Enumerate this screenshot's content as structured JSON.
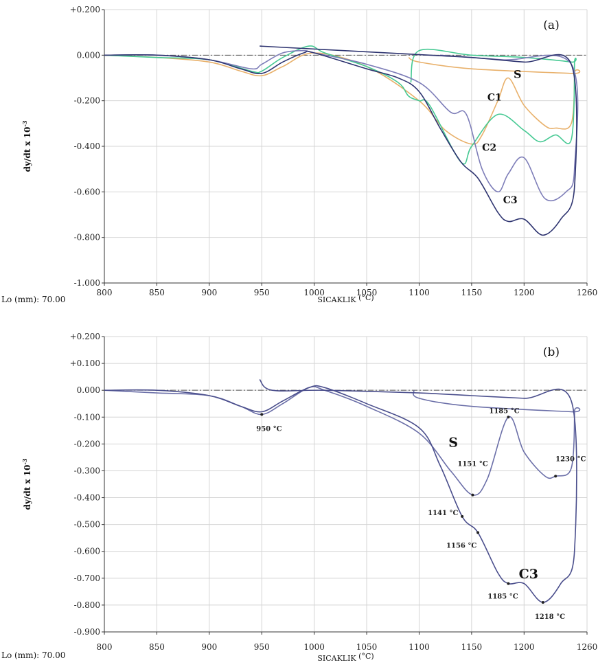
{
  "chart_data": [
    {
      "type": "line",
      "panel_label": "(a)",
      "xlabel": "SICAKLIK",
      "xunit": "(°C)",
      "ylabel": "dy/dt x 10",
      "ylabel_exp": "-3",
      "lo_label": "Lo (mm): 70.00",
      "xlim": [
        800,
        1260
      ],
      "ylim": [
        -1.0,
        0.2
      ],
      "x_ticks": [
        800,
        850,
        900,
        950,
        1000,
        1050,
        1100,
        1150,
        1200,
        1260
      ],
      "y_ticks": [
        0.2,
        0.0,
        -0.2,
        -0.4,
        -0.6,
        -0.8,
        -1.0
      ],
      "y_tick_labels": [
        "+0.200",
        "0.000",
        "-0.200",
        "-0.400",
        "-0.600",
        "-0.800",
        "-1.000"
      ],
      "grid": true,
      "series": [
        {
          "name": "S",
          "color": "#e8b06a",
          "x": [
            800,
            850,
            900,
            930,
            950,
            970,
            1000,
            1050,
            1100,
            1125,
            1150,
            1160,
            1175,
            1185,
            1200,
            1220,
            1230,
            1245,
            1248,
            1245,
            1150,
            1100,
            1090
          ],
          "y": [
            0.0,
            -0.01,
            -0.03,
            -0.07,
            -0.09,
            -0.05,
            0.01,
            -0.05,
            -0.2,
            -0.33,
            -0.39,
            -0.35,
            -0.2,
            -0.1,
            -0.22,
            -0.31,
            -0.32,
            -0.3,
            -0.08,
            -0.08,
            -0.06,
            -0.03,
            -0.01
          ]
        },
        {
          "name": "C1",
          "color": "#46c993",
          "x": [
            800,
            850,
            900,
            940,
            950,
            970,
            995,
            1010,
            1050,
            1080,
            1090,
            1100,
            1110,
            1140,
            1150,
            1175,
            1200,
            1215,
            1230,
            1245,
            1248,
            1245,
            1200,
            1150,
            1100,
            1092
          ],
          "y": [
            0.0,
            -0.01,
            -0.02,
            -0.07,
            -0.07,
            -0.01,
            0.04,
            0.01,
            -0.05,
            -0.12,
            -0.18,
            -0.2,
            -0.22,
            -0.47,
            -0.4,
            -0.26,
            -0.33,
            -0.38,
            -0.35,
            -0.37,
            -0.04,
            -0.03,
            -0.01,
            0.0,
            0.02,
            -0.12
          ]
        },
        {
          "name": "C2",
          "color": "#7d7db8",
          "x": [
            800,
            850,
            900,
            940,
            950,
            970,
            990,
            1000,
            1050,
            1100,
            1130,
            1145,
            1160,
            1175,
            1185,
            1200,
            1220,
            1240,
            1248,
            1245,
            1180,
            1120
          ],
          "y": [
            0.0,
            0.0,
            -0.02,
            -0.06,
            -0.04,
            0.01,
            0.02,
            0.01,
            -0.04,
            -0.12,
            -0.25,
            -0.26,
            -0.5,
            -0.6,
            -0.52,
            -0.45,
            -0.63,
            -0.6,
            -0.5,
            -0.04,
            -0.02,
            0.0
          ]
        },
        {
          "name": "C3",
          "color": "#2e3470",
          "x": [
            800,
            850,
            900,
            930,
            950,
            970,
            990,
            1000,
            1050,
            1080,
            1100,
            1120,
            1140,
            1156,
            1175,
            1185,
            1200,
            1218,
            1235,
            1248,
            1245,
            1200,
            1150,
            1110,
            948
          ],
          "y": [
            0.0,
            0.0,
            -0.02,
            -0.06,
            -0.08,
            -0.03,
            0.01,
            0.01,
            -0.06,
            -0.1,
            -0.16,
            -0.32,
            -0.47,
            -0.54,
            -0.69,
            -0.73,
            -0.72,
            -0.79,
            -0.72,
            -0.58,
            -0.04,
            -0.03,
            -0.01,
            0.0,
            0.04
          ]
        }
      ],
      "series_labels": [
        {
          "text": "S",
          "x": 1190,
          "y": -0.1,
          "size": 16
        },
        {
          "text": "C1",
          "x": 1165,
          "y": -0.2,
          "size": 14
        },
        {
          "text": "C2",
          "x": 1160,
          "y": -0.42,
          "size": 14
        },
        {
          "text": "C3",
          "x": 1180,
          "y": -0.65,
          "size": 14
        }
      ],
      "annotations": []
    },
    {
      "type": "line",
      "panel_label": "(b)",
      "xlabel": "SICAKLIK",
      "xunit": "(°C)",
      "ylabel": "dy/dt x 10",
      "ylabel_exp": "-3",
      "lo_label": "Lo (mm): 70.00",
      "xlim": [
        800,
        1260
      ],
      "ylim": [
        -0.9,
        0.2
      ],
      "x_ticks": [
        800,
        850,
        900,
        950,
        1000,
        1050,
        1100,
        1150,
        1200,
        1260
      ],
      "y_ticks": [
        0.2,
        0.1,
        0.0,
        -0.1,
        -0.2,
        -0.3,
        -0.4,
        -0.5,
        -0.6,
        -0.7,
        -0.8,
        -0.9
      ],
      "y_tick_labels": [
        "+0.200",
        "+0.100",
        "0.000",
        "-0.100",
        "-0.200",
        "-0.300",
        "-0.400",
        "-0.500",
        "-0.600",
        "-0.700",
        "-0.800",
        "-0.900"
      ],
      "grid": true,
      "series": [
        {
          "name": "S",
          "color": "#6b6fa8",
          "x": [
            800,
            850,
            900,
            930,
            950,
            970,
            995,
            1010,
            1050,
            1100,
            1130,
            1151,
            1165,
            1185,
            1200,
            1220,
            1230,
            1245,
            1248,
            1245,
            1150,
            1100,
            1095
          ],
          "y": [
            0.0,
            -0.01,
            -0.02,
            -0.06,
            -0.09,
            -0.05,
            0.01,
            0.0,
            -0.06,
            -0.16,
            -0.3,
            -0.39,
            -0.33,
            -0.1,
            -0.23,
            -0.32,
            -0.32,
            -0.29,
            -0.08,
            -0.08,
            -0.06,
            -0.03,
            0.0
          ]
        },
        {
          "name": "C3",
          "color": "#4a4e8c",
          "x": [
            800,
            850,
            900,
            930,
            950,
            970,
            995,
            1010,
            1050,
            1100,
            1120,
            1141,
            1156,
            1175,
            1185,
            1200,
            1218,
            1235,
            1248,
            1245,
            1200,
            1150,
            1100,
            1010,
            960,
            948
          ],
          "y": [
            0.0,
            0.0,
            -0.02,
            -0.06,
            -0.08,
            -0.04,
            0.01,
            0.01,
            -0.05,
            -0.14,
            -0.28,
            -0.47,
            -0.53,
            -0.68,
            -0.72,
            -0.72,
            -0.79,
            -0.72,
            -0.6,
            -0.04,
            -0.03,
            -0.02,
            -0.01,
            0.0,
            0.0,
            0.04
          ]
        }
      ],
      "series_labels": [
        {
          "text": "S",
          "x": 1128,
          "y": -0.21,
          "size": 19
        },
        {
          "text": "C3",
          "x": 1195,
          "y": -0.7,
          "size": 19
        }
      ],
      "annotations": [
        {
          "text": "950 °C",
          "x": 950,
          "y": -0.09,
          "dx": -8,
          "dy": 24
        },
        {
          "text": "1151 °C",
          "x": 1151,
          "y": -0.39,
          "dx": -22,
          "dy": -42
        },
        {
          "text": "1185 °C",
          "x": 1185,
          "y": -0.1,
          "dx": -28,
          "dy": -6
        },
        {
          "text": "1230 °C",
          "x": 1230,
          "y": -0.32,
          "dx": 0,
          "dy": -22
        },
        {
          "text": "1141 °C",
          "x": 1141,
          "y": -0.47,
          "dx": -50,
          "dy": -2
        },
        {
          "text": "1156 °C",
          "x": 1156,
          "y": -0.53,
          "dx": -46,
          "dy": 22
        },
        {
          "text": "1185 °C",
          "x": 1185,
          "y": -0.72,
          "dx": -30,
          "dy": 22
        },
        {
          "text": "1218 °C",
          "x": 1218,
          "y": -0.79,
          "dx": -12,
          "dy": 24
        }
      ]
    }
  ]
}
